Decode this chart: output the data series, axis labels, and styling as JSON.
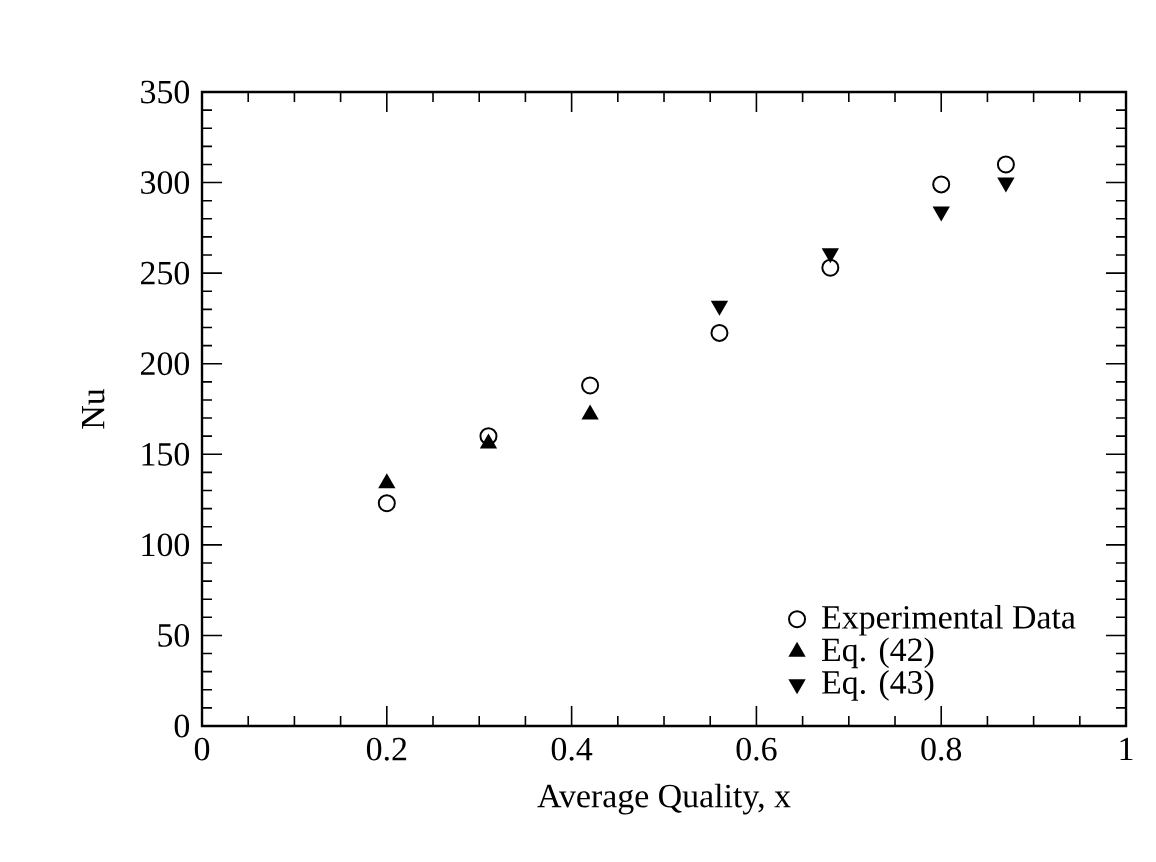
{
  "chart_data": {
    "type": "scatter",
    "xlabel": "Average Quality, x",
    "ylabel": "Nu",
    "xlim": [
      0,
      1
    ],
    "ylim": [
      0,
      350
    ],
    "xticks": [
      0,
      0.2,
      0.4,
      0.6,
      0.8,
      1
    ],
    "yticks": [
      0,
      50,
      100,
      150,
      200,
      250,
      300,
      350
    ],
    "legend": "bottom right",
    "grid": false,
    "series": [
      {
        "name": "Experimental Data",
        "color": "#000000",
        "marker": "circle",
        "x": [
          0.2,
          0.31,
          0.42,
          0.56,
          0.68,
          0.8,
          0.87
        ],
        "values": [
          123,
          160,
          188,
          217,
          253,
          299,
          310
        ]
      },
      {
        "name": "Eq. (42)",
        "color": "#000000",
        "marker": "triangle",
        "x": [
          0.2,
          0.31,
          0.42
        ],
        "values": [
          134,
          156,
          172
        ]
      },
      {
        "name": "Eq. (43)",
        "color": "#000000",
        "marker": "triangle-down",
        "x": [
          0.56,
          0.68,
          0.8,
          0.87
        ],
        "values": [
          232,
          261,
          284,
          300
        ]
      }
    ]
  }
}
